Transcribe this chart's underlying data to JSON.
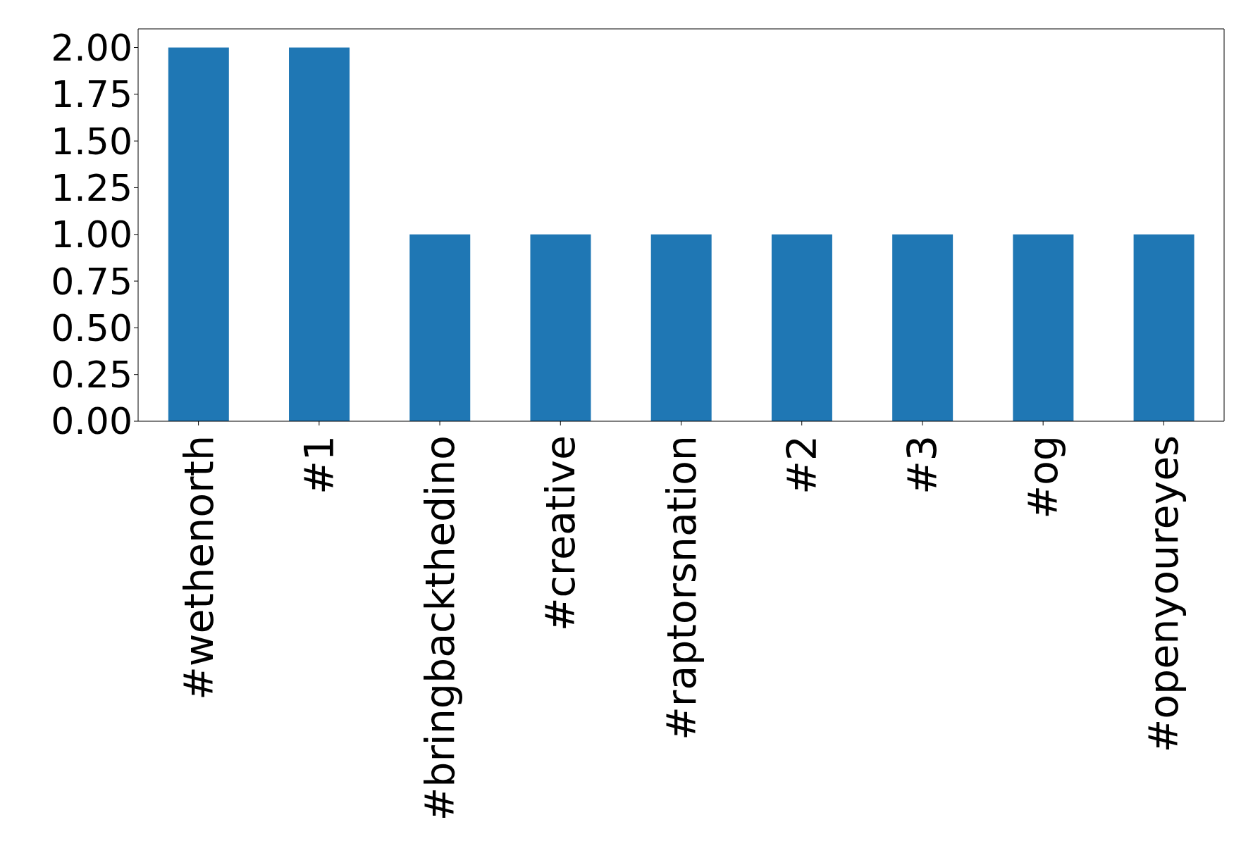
{
  "chart_data": {
    "type": "bar",
    "categories": [
      "#wethenorth",
      "#1",
      "#bringbackthedino",
      "#creative",
      "#raptorsnation",
      "#2",
      "#3",
      "#og",
      "#openyoureyes"
    ],
    "values": [
      2,
      2,
      1,
      1,
      1,
      1,
      1,
      1,
      1
    ],
    "color": "#1f77b4",
    "ylim": [
      0,
      2.1
    ],
    "yticks": [
      {
        "value": 0,
        "label": "0.00"
      },
      {
        "value": 0.25,
        "label": "0.25"
      },
      {
        "value": 0.5,
        "label": "0.50"
      },
      {
        "value": 0.75,
        "label": "0.75"
      },
      {
        "value": 1,
        "label": "1.00"
      },
      {
        "value": 1.25,
        "label": "1.25"
      },
      {
        "value": 1.5,
        "label": "1.50"
      },
      {
        "value": 1.75,
        "label": "1.75"
      },
      {
        "value": 2,
        "label": "2.00"
      }
    ],
    "grid": false,
    "legend": false
  }
}
